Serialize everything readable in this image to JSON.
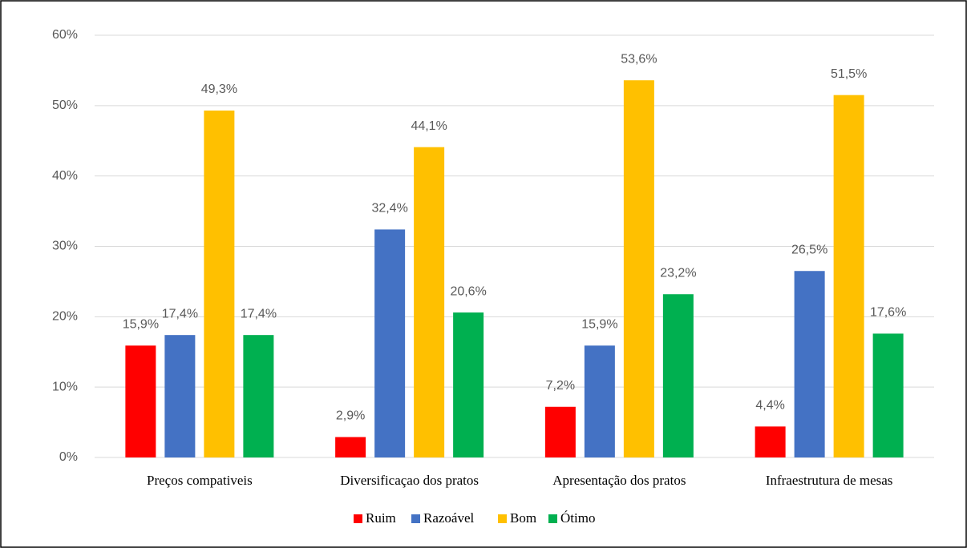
{
  "chart_data": {
    "type": "bar",
    "categories": [
      "Preços compativeis",
      "Diversificaçao dos pratos",
      "Apresentação dos pratos",
      "Infraestrutura de mesas"
    ],
    "series": [
      {
        "name": "Ruim",
        "color": "#ff0000",
        "values": [
          15.9,
          2.9,
          7.2,
          4.4
        ],
        "value_labels": [
          "15,9%",
          "2,9%",
          "7,2%",
          "4,4%"
        ]
      },
      {
        "name": "Razoável",
        "color": "#4472c4",
        "values": [
          17.4,
          32.4,
          15.9,
          26.5
        ],
        "value_labels": [
          "17,4%",
          "32,4%",
          "15,9%",
          "26,5%"
        ]
      },
      {
        "name": "Bom",
        "color": "#ffc000",
        "values": [
          49.3,
          44.1,
          53.6,
          51.5
        ],
        "value_labels": [
          "49,3%",
          "44,1%",
          "53,6%",
          "51,5%"
        ]
      },
      {
        "name": "Ótimo",
        "color": "#00b050",
        "values": [
          17.4,
          20.6,
          23.2,
          17.6
        ],
        "value_labels": [
          "17,4%",
          "20,6%",
          "23,2%",
          "17,6%"
        ]
      }
    ],
    "ylim": [
      0,
      60
    ],
    "yticks": [
      {
        "value": 0,
        "label": "0%"
      },
      {
        "value": 10,
        "label": "10%"
      },
      {
        "value": 20,
        "label": "20%"
      },
      {
        "value": 30,
        "label": "30%"
      },
      {
        "value": 40,
        "label": "40%"
      },
      {
        "value": 50,
        "label": "50%"
      },
      {
        "value": 60,
        "label": "60%"
      }
    ],
    "grid": true,
    "legend": "bottom"
  }
}
